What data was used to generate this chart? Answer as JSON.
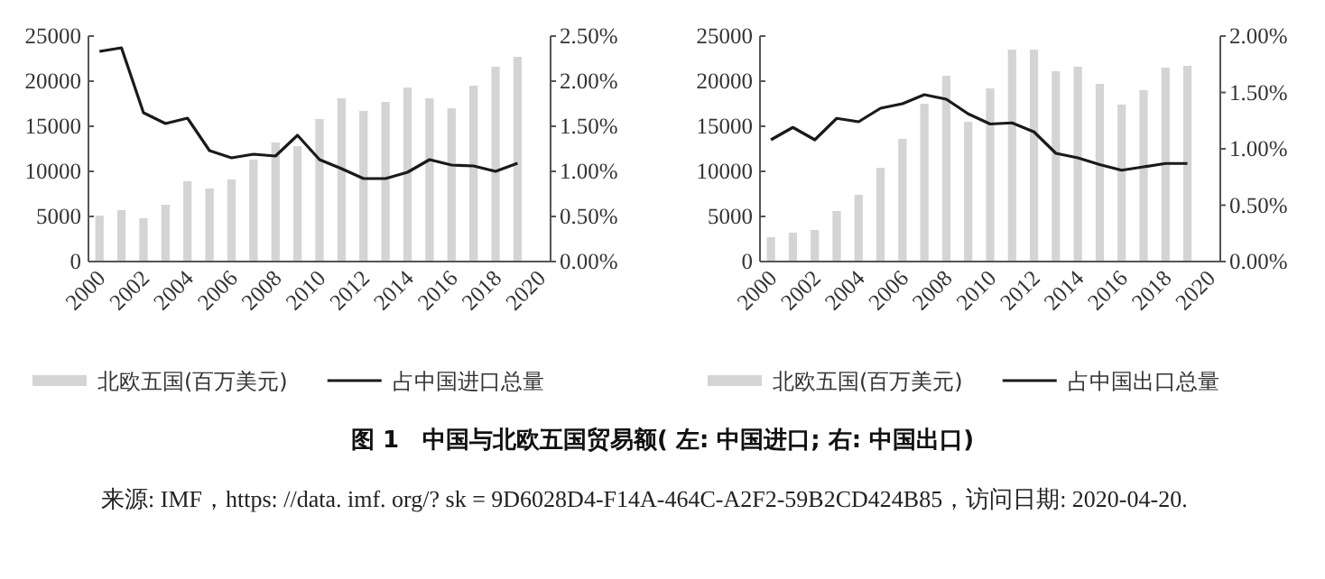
{
  "chart_data": [
    {
      "type": "bar",
      "categories": [
        "2000",
        null,
        "2002",
        null,
        "2004",
        null,
        "2006",
        null,
        "2008",
        null,
        "2010",
        null,
        "2012",
        null,
        "2014",
        null,
        "2016",
        null,
        "2018",
        null,
        "2020"
      ],
      "ylim": [
        0,
        25000
      ],
      "yticks": [
        0,
        5000,
        10000,
        15000,
        20000,
        25000
      ],
      "y2lim": [
        0,
        2.5
      ],
      "y2ticks": [
        {
          "value": 0,
          "label": "0.00%"
        },
        {
          "value": 0.5,
          "label": "0.50%"
        },
        {
          "value": 1,
          "label": "1.00%"
        },
        {
          "value": 1.5,
          "label": "1.50%"
        },
        {
          "value": 2,
          "label": "2.00%"
        },
        {
          "value": 2.5,
          "label": "2.50%"
        }
      ],
      "legend": "bottom",
      "grid": false,
      "series": [
        {
          "name": "北欧五国(百万美元)",
          "color": "#d4d4d4",
          "values": [
            5100,
            5700,
            4800,
            6300,
            8900,
            8100,
            9100,
            11300,
            13200,
            12800,
            15800,
            18100,
            16700,
            17700,
            19300,
            18100,
            17000,
            19500,
            21600,
            22700,
            null
          ]
        },
        {
          "name": "占中国进口总量",
          "type": "line",
          "axis": "y2",
          "color": "#1a1a1a",
          "values": [
            2.33,
            2.37,
            1.65,
            1.53,
            1.59,
            1.23,
            1.15,
            1.19,
            1.17,
            1.4,
            1.13,
            1.03,
            0.92,
            0.92,
            0.99,
            1.13,
            1.07,
            1.06,
            1.0,
            1.09,
            null
          ]
        }
      ],
      "annotations": [
        "图 1　中国与北欧五国贸易额( 左: 中国进口; 右: 中国出口)",
        "来源: IMF，https: //data. imf. org/?  sk = 9D6028D4-F14A-464C-A2F2-59B2CD424B85，访问日期: 2020-04-20."
      ]
    },
    {
      "type": "bar",
      "categories": [
        "2000",
        null,
        "2002",
        null,
        "2004",
        null,
        "2006",
        null,
        "2008",
        null,
        "2010",
        null,
        "2012",
        null,
        "2014",
        null,
        "2016",
        null,
        "2018",
        null,
        "2020"
      ],
      "ylim": [
        0,
        25000
      ],
      "yticks": [
        0,
        5000,
        10000,
        15000,
        20000,
        25000
      ],
      "y2lim": [
        0,
        2.0
      ],
      "y2ticks": [
        {
          "value": 0,
          "label": "0.00%"
        },
        {
          "value": 0.5,
          "label": "0.50%"
        },
        {
          "value": 1,
          "label": "1.00%"
        },
        {
          "value": 1.5,
          "label": "1.50%"
        },
        {
          "value": 2,
          "label": "2.00%"
        }
      ],
      "legend": "bottom",
      "grid": false,
      "series": [
        {
          "name": "北欧五国(百万美元)",
          "color": "#d4d4d4",
          "values": [
            2700,
            3200,
            3500,
            5600,
            7400,
            10400,
            13600,
            17500,
            20600,
            15500,
            19200,
            23500,
            23500,
            21100,
            21600,
            19700,
            17400,
            19000,
            21500,
            21700,
            null
          ]
        },
        {
          "name": "占中国出口总量",
          "type": "line",
          "axis": "y2",
          "color": "#1a1a1a",
          "values": [
            1.08,
            1.19,
            1.08,
            1.27,
            1.24,
            1.36,
            1.4,
            1.48,
            1.44,
            1.31,
            1.22,
            1.23,
            1.15,
            0.96,
            0.92,
            0.86,
            0.81,
            0.84,
            0.87,
            0.87,
            null
          ]
        }
      ]
    }
  ]
}
